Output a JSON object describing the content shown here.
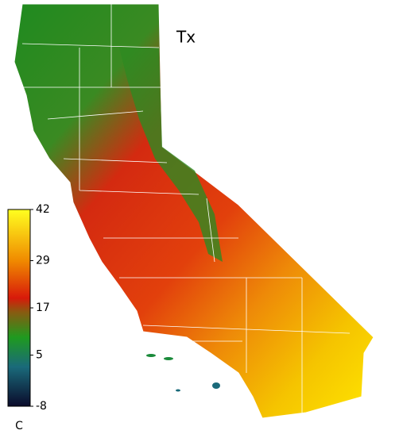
{
  "title": "Tx",
  "colorbar": {
    "ticks": [
      42,
      29,
      17,
      5,
      -8
    ],
    "lim": [
      -8,
      42
    ],
    "unit": "C"
  }
}
